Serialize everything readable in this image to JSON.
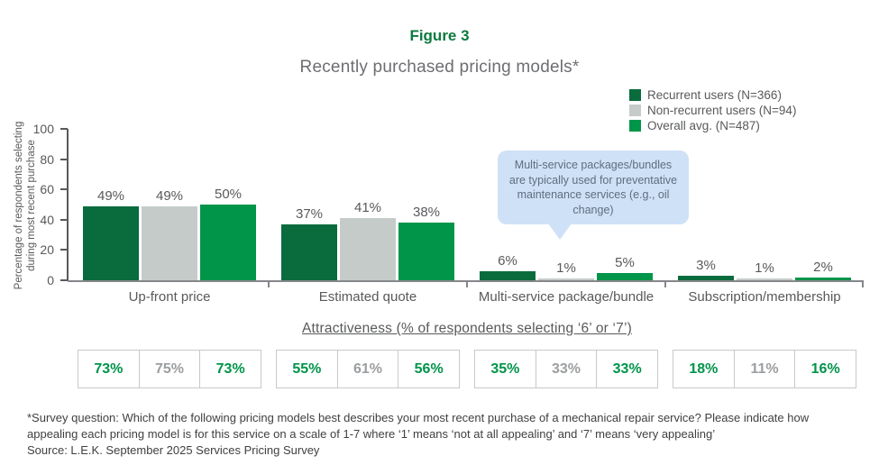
{
  "figure": {
    "label": "Figure 3",
    "title": "Recently purchased pricing models*"
  },
  "legend": {
    "items": [
      {
        "label": "Recurrent users (N=366)",
        "color": "#0a6b3d"
      },
      {
        "label": "Non-recurrent users (N=94)",
        "color": "#c5cbc9"
      },
      {
        "label": "Overall avg. (N=487)",
        "color": "#009549"
      }
    ]
  },
  "chart_data": {
    "type": "bar",
    "title": "Recently purchased pricing models*",
    "categories": [
      "Up-front price",
      "Estimated quote",
      "Multi-service package/bundle",
      "Subscription/membership"
    ],
    "series": [
      {
        "name": "Recurrent users (N=366)",
        "color": "#0a6b3d",
        "values": [
          49,
          37,
          6,
          3
        ]
      },
      {
        "name": "Non-recurrent users (N=94)",
        "color": "#c5cbc9",
        "values": [
          49,
          41,
          1,
          1
        ]
      },
      {
        "name": "Overall avg. (N=487)",
        "color": "#009549",
        "values": [
          50,
          38,
          5,
          2
        ]
      }
    ],
    "value_labels": [
      [
        "49%",
        "49%",
        "50%"
      ],
      [
        "37%",
        "41%",
        "38%"
      ],
      [
        "6%",
        "1%",
        "5%"
      ],
      [
        "3%",
        "1%",
        "2%"
      ]
    ],
    "xlabel": "",
    "ylabel_lines": [
      "Percentage of respondents selecting",
      "during most recent purchase"
    ],
    "ylim": [
      0,
      100
    ],
    "yticks": [
      0,
      20,
      40,
      60,
      80,
      100
    ],
    "ytick_labels_desc": [
      "100",
      "80",
      "60",
      "40",
      "20",
      "0"
    ],
    "grid": false,
    "legend_position": "top-right",
    "attractiveness_values_pct": [
      [
        73,
        75,
        73
      ],
      [
        55,
        61,
        56
      ],
      [
        35,
        33,
        33
      ],
      [
        18,
        11,
        16
      ]
    ]
  },
  "annotation": {
    "text": "Multi-service packages/bundles are typically used for preventative maintenance services (e.g., oil change)"
  },
  "attractiveness": {
    "heading": "Attractiveness (% of respondents selecting ‘6’ or ‘7’)",
    "groups": [
      [
        "73%",
        "75%",
        "73%"
      ],
      [
        "55%",
        "61%",
        "56%"
      ],
      [
        "35%",
        "33%",
        "33%"
      ],
      [
        "18%",
        "11%",
        "16%"
      ]
    ]
  },
  "footnote": {
    "survey_lines": [
      "*Survey question: Which of the following pricing models best describes your most recent purchase of a mechanical repair service? Please indicate how",
      "appealing each pricing model is for this service on a scale of 1-7 where ‘1’ means ‘not at all appealing’ and ‘7’ means ‘very appealing’"
    ],
    "source": "Source: L.E.K. September 2025 Services Pricing Survey"
  },
  "colors": {
    "figure_green": "#0d7a40",
    "dark_green_series": "#0a6b3d",
    "gray_series": "#c5cbc9",
    "green_series": "#009549",
    "axis_gray": "#58595b",
    "bubble_bg": "#cfe1f6",
    "table_green": "#00944a",
    "table_gray": "#9b9ea0"
  }
}
